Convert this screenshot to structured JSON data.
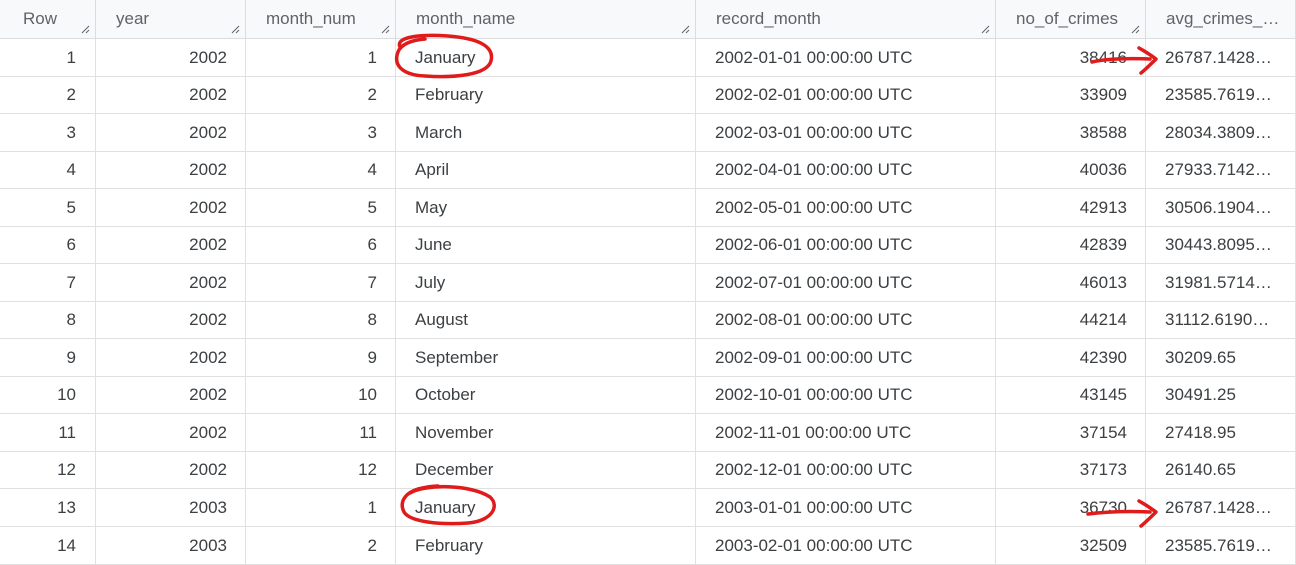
{
  "table": {
    "columns": [
      "Row",
      "year",
      "month_num",
      "month_name",
      "record_month",
      "no_of_crimes",
      "avg_crimes_…"
    ],
    "rows": [
      [
        "1",
        "2002",
        "1",
        "January",
        "2002-01-01 00:00:00 UTC",
        "38416",
        "26787.1428…"
      ],
      [
        "2",
        "2002",
        "2",
        "February",
        "2002-02-01 00:00:00 UTC",
        "33909",
        "23585.7619…"
      ],
      [
        "3",
        "2002",
        "3",
        "March",
        "2002-03-01 00:00:00 UTC",
        "38588",
        "28034.3809…"
      ],
      [
        "4",
        "2002",
        "4",
        "April",
        "2002-04-01 00:00:00 UTC",
        "40036",
        "27933.7142…"
      ],
      [
        "5",
        "2002",
        "5",
        "May",
        "2002-05-01 00:00:00 UTC",
        "42913",
        "30506.1904…"
      ],
      [
        "6",
        "2002",
        "6",
        "June",
        "2002-06-01 00:00:00 UTC",
        "42839",
        "30443.8095…"
      ],
      [
        "7",
        "2002",
        "7",
        "July",
        "2002-07-01 00:00:00 UTC",
        "46013",
        "31981.5714…"
      ],
      [
        "8",
        "2002",
        "8",
        "August",
        "2002-08-01 00:00:00 UTC",
        "44214",
        "31112.6190…"
      ],
      [
        "9",
        "2002",
        "9",
        "September",
        "2002-09-01 00:00:00 UTC",
        "42390",
        "30209.65"
      ],
      [
        "10",
        "2002",
        "10",
        "October",
        "2002-10-01 00:00:00 UTC",
        "43145",
        "30491.25"
      ],
      [
        "11",
        "2002",
        "11",
        "November",
        "2002-11-01 00:00:00 UTC",
        "37154",
        "27418.95"
      ],
      [
        "12",
        "2002",
        "12",
        "December",
        "2002-12-01 00:00:00 UTC",
        "37173",
        "26140.65"
      ],
      [
        "13",
        "2003",
        "1",
        "January",
        "2003-01-01 00:00:00 UTC",
        "36730",
        "26787.1428…"
      ],
      [
        "14",
        "2003",
        "2",
        "February",
        "2003-02-01 00:00:00 UTC",
        "32509",
        "23585.7619…"
      ]
    ]
  },
  "annotations": {
    "color": "#e01b1b",
    "circles": [
      "January (row 1)",
      "January (row 13)"
    ],
    "arrows": [
      "no_of_crimes → avg (row 1)",
      "no_of_crimes → avg (row 13)"
    ]
  }
}
